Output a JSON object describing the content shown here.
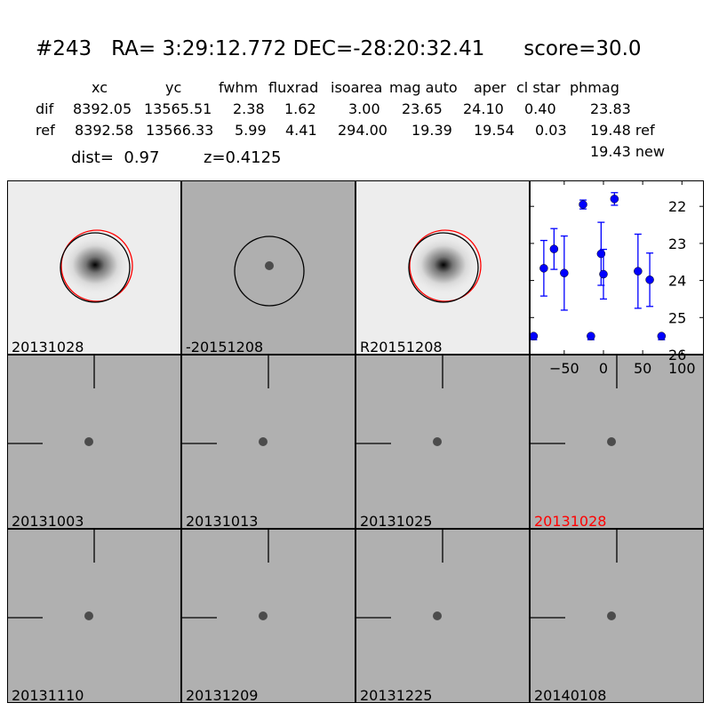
{
  "title": "#243   RA= 3:29:12.772 DEC=-28:20:32.41      score=30.0",
  "table": {
    "headers": [
      "xc",
      "yc",
      "fwhm",
      "fluxrad",
      "isoarea",
      "mag auto",
      "aper",
      "cl star",
      "phmag"
    ],
    "rows": [
      {
        "label": "dif",
        "values": [
          "8392.05",
          "13565.51",
          "2.38",
          "1.62",
          "3.00",
          "23.65",
          "24.10",
          "0.40",
          "23.83"
        ]
      },
      {
        "label": "ref",
        "values": [
          "8392.58",
          "13566.33",
          "5.99",
          "4.41",
          "294.00",
          "19.39",
          "19.54",
          "0.03",
          "19.48 ref"
        ]
      }
    ],
    "new_mag": "19.43 new",
    "dist": "dist=  0.97",
    "z": "z=0.4125"
  },
  "stamps": {
    "top": [
      {
        "label": "20131028",
        "type": "galaxy"
      },
      {
        "label": "-20151208",
        "type": "diff"
      },
      {
        "label": "R20151208",
        "type": "galaxy"
      }
    ],
    "cutouts": [
      {
        "label": "20131003",
        "color": "#000000"
      },
      {
        "label": "20131013",
        "color": "#000000"
      },
      {
        "label": "20131025",
        "color": "#000000"
      },
      {
        "label": "20131028",
        "color": "#ff0000"
      },
      {
        "label": "20131110",
        "color": "#000000"
      },
      {
        "label": "20131209",
        "color": "#000000"
      },
      {
        "label": "20131225",
        "color": "#000000"
      },
      {
        "label": "20140108",
        "color": "#000000"
      }
    ],
    "circle_colors": {
      "ref": "#ff0000",
      "detection": "#000000"
    }
  },
  "chart_data": {
    "type": "scatter",
    "xlim": [
      -94,
      128
    ],
    "ylim": [
      26,
      21.3
    ],
    "y_inverted": true,
    "xticks": [
      -50,
      0,
      50,
      100
    ],
    "xtick_labels": [
      "−50",
      "0",
      "50",
      "100"
    ],
    "yticks": [
      22,
      23,
      24,
      25,
      26
    ],
    "ytick_labels": [
      "22",
      "23",
      "24",
      "25",
      "26"
    ],
    "color": "#0000ff",
    "points": [
      {
        "x": -89,
        "y": 25.5,
        "limit": true
      },
      {
        "x": -76,
        "y": 23.67,
        "err": 0.75
      },
      {
        "x": -63,
        "y": 23.15,
        "err": 0.55
      },
      {
        "x": -50,
        "y": 23.8,
        "err": 1.0
      },
      {
        "x": -26,
        "y": 21.95,
        "err": 0.12
      },
      {
        "x": -16,
        "y": 25.5,
        "limit": true
      },
      {
        "x": -3,
        "y": 23.28,
        "err": 0.85
      },
      {
        "x": 0,
        "y": 23.83,
        "err": 0.67
      },
      {
        "x": 14,
        "y": 21.8,
        "err": 0.17
      },
      {
        "x": 44,
        "y": 23.75,
        "err": 1.0
      },
      {
        "x": 59,
        "y": 23.98,
        "err": 0.72
      },
      {
        "x": 74,
        "y": 25.5,
        "limit": true
      }
    ]
  }
}
